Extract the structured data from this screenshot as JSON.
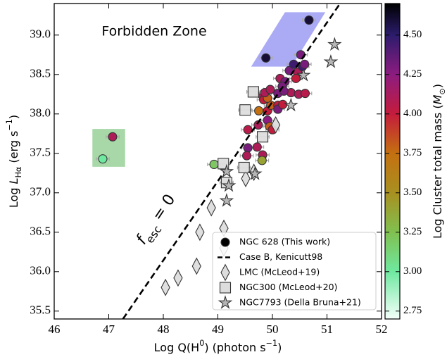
{
  "chart_data": {
    "type": "scatter",
    "xlabel": [
      {
        "text": "Log Q(H"
      },
      {
        "text": "0",
        "sup": true
      },
      {
        "text": ") (photon s"
      },
      {
        "text": "−1",
        "sup": true
      },
      {
        "text": ")"
      }
    ],
    "ylabel": [
      {
        "text": "Log "
      },
      {
        "text": "L",
        "italic": true
      },
      {
        "text": "Hα",
        "sub": true
      },
      {
        "text": " (erg s"
      },
      {
        "text": "−1",
        "sup": true
      },
      {
        "text": ")"
      }
    ],
    "xlim": [
      46,
      52
    ],
    "ylim": [
      35.4,
      39.4
    ],
    "xticks": [
      46,
      47,
      48,
      49,
      50,
      51,
      52
    ],
    "yticks": [
      35.5,
      {
        "value": 36,
        "label": "36.0"
      },
      36.5,
      {
        "value": 37,
        "label": "37.0"
      },
      37.5,
      {
        "value": 38,
        "label": "38.0"
      },
      38.5,
      {
        "value": 39,
        "label": "39.0"
      }
    ],
    "legend": "lower right",
    "annotations": [
      {
        "text": "Forbidden Zone"
      }
    ],
    "line_label": [
      {
        "text": "f",
        "italic": true
      },
      {
        "text": "esc",
        "sub": true
      },
      {
        "text": " = 0"
      }
    ],
    "regions": [
      {
        "color": "#aaaaf5",
        "x": [
          49.61,
          50.23,
          50.97,
          50.35
        ],
        "y": [
          38.6,
          39.29,
          39.29,
          38.6
        ]
      },
      {
        "color": "#a8d8a8",
        "x": [
          46.7,
          47.3,
          47.3,
          46.7
        ],
        "y": [
          37.33,
          37.33,
          37.81,
          37.81
        ]
      }
    ],
    "colorbar": {
      "label": [
        {
          "text": "Log Cluster total mass ("
        },
        {
          "text": "M",
          "italic": true
        },
        {
          "text": "⊙",
          "sub": true
        },
        {
          "text": ")"
        }
      ],
      "clim": [
        2.7,
        4.7
      ],
      "ticks": [
        2.75,
        {
          "value": 3,
          "label": "3.00"
        },
        3.25,
        {
          "value": 3.5,
          "label": "3.50"
        },
        3.75,
        {
          "value": 4,
          "label": "4.00"
        },
        4.25,
        {
          "value": 4.5,
          "label": "4.50"
        }
      ],
      "colormap": [
        [
          2.7,
          "#f4fffa"
        ],
        [
          3.0,
          "#6fe8a0"
        ],
        [
          3.25,
          "#80c050"
        ],
        [
          3.5,
          "#a89020"
        ],
        [
          3.75,
          "#c47010"
        ],
        [
          4.0,
          "#c41c3c"
        ],
        [
          4.25,
          "#8c1c80"
        ],
        [
          4.5,
          "#2c1c6c"
        ],
        [
          4.7,
          "#000000"
        ]
      ]
    },
    "series": [
      {
        "name": "NGC 628 (This work)",
        "marker": "circle",
        "xerr": 0.12,
        "x": [
          50.67,
          49.88,
          47.07,
          46.89,
          48.93,
          49.55,
          49.55,
          49.53,
          49.72,
          49.82,
          49.81,
          49.74,
          49.91,
          49.75,
          49.91,
          49.97,
          50.1,
          49.81,
          49.84,
          49.91,
          49.86,
          49.96,
          50.1,
          50.1,
          50.19,
          50.14,
          50.23,
          50.18,
          50.31,
          50.39,
          50.46,
          50.55,
          50.59,
          50.52,
          50.43,
          50.34,
          50.48,
          50.21,
          49.95,
          50.0,
          50.6
        ],
        "y": [
          39.19,
          38.71,
          37.71,
          37.43,
          37.36,
          37.8,
          37.57,
          37.47,
          37.58,
          37.48,
          37.41,
          37.86,
          37.92,
          38.04,
          38.04,
          38.11,
          38.11,
          38.24,
          38.18,
          38.2,
          38.27,
          38.31,
          38.26,
          38.06,
          38.12,
          38.45,
          38.41,
          38.35,
          38.55,
          38.63,
          38.53,
          38.6,
          38.63,
          38.75,
          38.45,
          38.27,
          38.25,
          38.29,
          37.84,
          37.8,
          38.26
        ],
        "c": [
          4.6,
          4.6,
          4.1,
          3.0,
          3.2,
          4.05,
          4.3,
          4.1,
          4.1,
          4.1,
          3.4,
          4.1,
          4.25,
          3.75,
          4.0,
          3.8,
          4.0,
          4.1,
          4.0,
          3.8,
          4.1,
          4.1,
          4.3,
          4.3,
          4.0,
          4.1,
          4.3,
          4.3,
          4.3,
          4.45,
          4.1,
          4.45,
          4.3,
          4.3,
          4.0,
          4.1,
          4.1,
          4.3,
          3.8,
          4.0,
          4.05
        ]
      },
      {
        "name": "Case B, Kenicutt98",
        "marker": "dashed-line",
        "color": "#000000",
        "x": [
          47.26,
          51.24
        ],
        "y": [
          35.4,
          39.4
        ]
      },
      {
        "name": "LMC (McLeod+19)",
        "marker": "diamond",
        "color": "#dddddd",
        "x": [
          48.04,
          48.27,
          48.61,
          48.67,
          48.88,
          49.11,
          49.11,
          49.51,
          49.66,
          50.06
        ],
        "y": [
          35.8,
          35.92,
          36.07,
          36.5,
          36.81,
          36.3,
          36.55,
          37.18,
          37.26,
          37.86
        ]
      },
      {
        "name": "NGC300 (McLeod+20)",
        "marker": "square",
        "color": "#dddddd",
        "xerr": 0.12,
        "x": [
          49.65,
          49.5,
          49.1,
          49.16,
          49.48,
          49.82
        ],
        "y": [
          38.28,
          38.05,
          37.37,
          37.13,
          37.32,
          37.71
        ]
      },
      {
        "name": "NGC7793 (Della Bruna+21)",
        "marker": "star",
        "color": "#b4b4b4",
        "x": [
          51.14,
          51.07,
          50.57,
          50.34,
          49.16,
          49.16,
          49.68,
          49.2
        ],
        "y": [
          38.88,
          38.66,
          38.49,
          38.11,
          36.9,
          37.27,
          37.24,
          37.09
        ]
      }
    ]
  }
}
